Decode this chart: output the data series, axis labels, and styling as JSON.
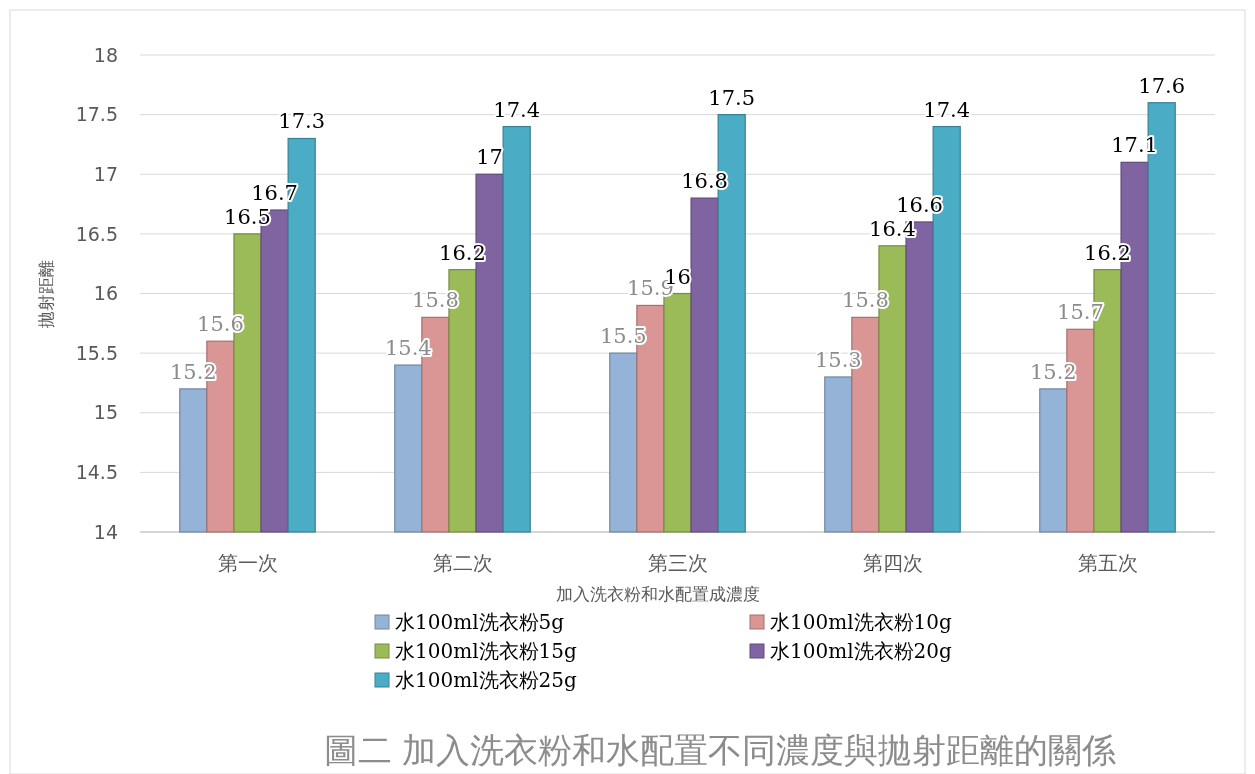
{
  "chart_data": {
    "type": "bar",
    "title": "圖二  加入洗衣粉和水配置不同濃度與拋射距離的關係",
    "xlabel": "加入洗衣粉和水配置成濃度",
    "ylabel": "拋射距離",
    "categories": [
      "第一次",
      "第二次",
      "第三次",
      "第四次",
      "第五次"
    ],
    "series": [
      {
        "name": "水100ml洗衣粉5g",
        "color": "#95b3d7",
        "values": [
          15.2,
          15.4,
          15.5,
          15.3,
          15.2
        ]
      },
      {
        "name": "水100ml洗衣粉10g",
        "color": "#d99694",
        "values": [
          15.6,
          15.8,
          15.9,
          15.8,
          15.7
        ]
      },
      {
        "name": "水100ml洗衣粉15g",
        "color": "#9bbb59",
        "values": [
          16.5,
          16.2,
          16,
          16.4,
          16.2
        ]
      },
      {
        "name": "水100ml洗衣粉20g",
        "color": "#8064a2",
        "values": [
          16.7,
          17,
          16.8,
          16.6,
          17.1
        ]
      },
      {
        "name": "水100ml洗衣粉25g",
        "color": "#4bacc6",
        "values": [
          17.3,
          17.4,
          17.5,
          17.4,
          17.6
        ]
      }
    ],
    "ylim": [
      14,
      18
    ],
    "yticks": [
      14,
      14.5,
      15,
      15.5,
      16,
      16.5,
      17,
      17.5,
      18
    ],
    "grid": "y",
    "legend": "bottom",
    "data_labels": true
  }
}
